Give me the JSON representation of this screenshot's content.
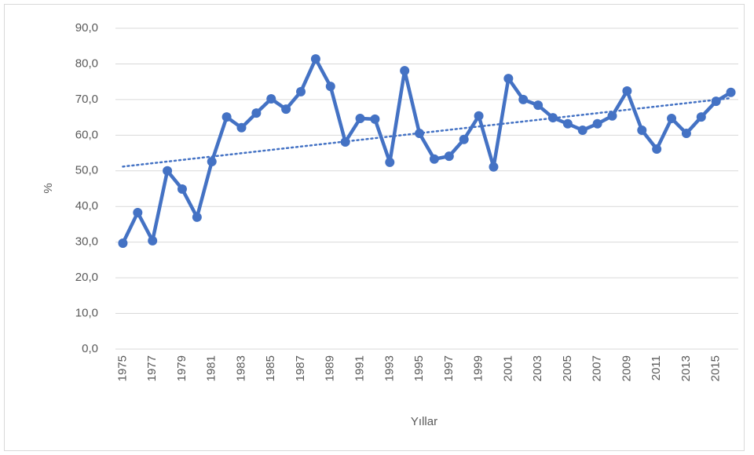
{
  "chart_data": {
    "type": "line",
    "y_label": "%",
    "x_label": "Yıllar",
    "categories": [
      "1975",
      null,
      "1977",
      null,
      "1979",
      null,
      "1981",
      null,
      "1983",
      null,
      "1985",
      null,
      "1987",
      null,
      "1989",
      null,
      "1991",
      null,
      "1993",
      null,
      "1995",
      null,
      "1997",
      null,
      "1999",
      null,
      "2001",
      null,
      "2003",
      null,
      "2005",
      null,
      "2007",
      null,
      "2009",
      null,
      "2011",
      null,
      "2013",
      null,
      "2015",
      null
    ],
    "series": [
      {
        "color": "#4472c4",
        "values": [
          29.7,
          38.3,
          30.4,
          50.0,
          44.9,
          37.0,
          52.6,
          65.1,
          62.1,
          66.2,
          70.2,
          67.3,
          72.2,
          81.4,
          73.7,
          58.1,
          64.7,
          64.5,
          52.4,
          78.1,
          60.5,
          53.3,
          54.1,
          58.8,
          65.4,
          51.1,
          75.9,
          70.0,
          68.4,
          64.9,
          63.2,
          61.4,
          63.2,
          65.4,
          72.4,
          61.4,
          56.1,
          64.7,
          60.5,
          65.1,
          69.5,
          72.0
        ]
      }
    ],
    "trendline": {
      "start": 51.2,
      "end": 70.4,
      "color": "#4472c4",
      "style": "dotted"
    },
    "ylim": [
      0,
      90
    ],
    "yticks": [
      {
        "value": 0,
        "label": "0,0"
      },
      {
        "value": 10,
        "label": "10,0"
      },
      {
        "value": 20,
        "label": "20,0"
      },
      {
        "value": 30,
        "label": "30,0"
      },
      {
        "value": 40,
        "label": "40,0"
      },
      {
        "value": 50,
        "label": "50,0"
      },
      {
        "value": 60,
        "label": "60,0"
      },
      {
        "value": 70,
        "label": "70,0"
      },
      {
        "value": 80,
        "label": "80,0"
      },
      {
        "value": 90,
        "label": "90,0"
      }
    ],
    "grid": true
  }
}
